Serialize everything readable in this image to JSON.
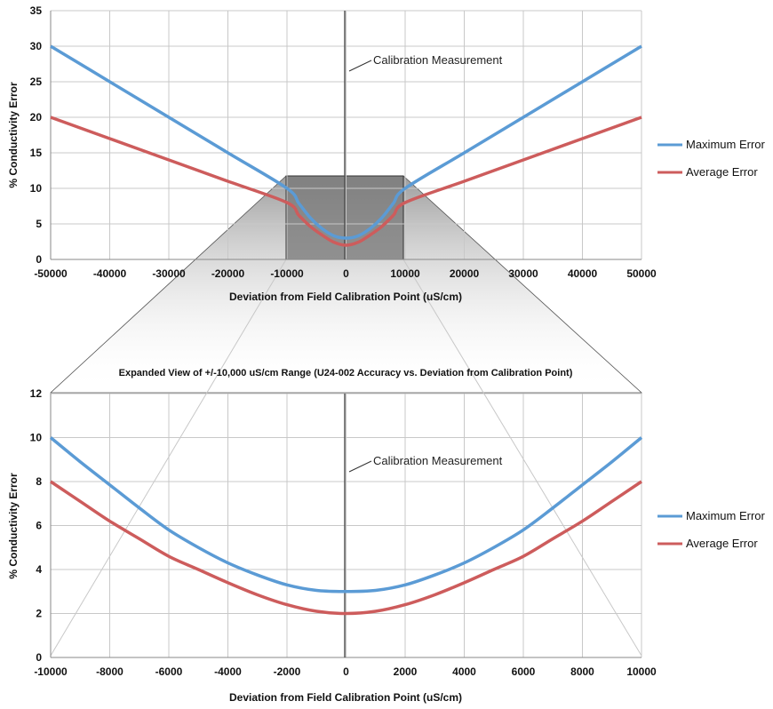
{
  "colors": {
    "max_error": "#5b9bd5",
    "avg_error": "#cd5c5c",
    "grid": "#c8c8c8",
    "zoom_fill": "#7f7f7f"
  },
  "chart_data": [
    {
      "type": "line",
      "title": "",
      "xlabel": "Deviation from Field Calibration Point (uS/cm)",
      "ylabel": "% Conductivity Error",
      "xlim": [
        -50000,
        50000
      ],
      "ylim": [
        0,
        35
      ],
      "xticks": [
        -50000,
        -40000,
        -30000,
        -20000,
        -10000,
        0,
        10000,
        20000,
        30000,
        40000,
        50000
      ],
      "yticks": [
        0,
        5,
        10,
        15,
        20,
        25,
        30,
        35
      ],
      "grid": true,
      "legend": "right",
      "annotation": "Calibration Measurement",
      "series": [
        {
          "name": "Maximum Error",
          "color": "#5b9bd5",
          "x": [
            -50000,
            -40000,
            -30000,
            -20000,
            -10000,
            -8000,
            -6000,
            -4000,
            -2000,
            0,
            2000,
            4000,
            6000,
            8000,
            10000,
            20000,
            30000,
            40000,
            50000
          ],
          "y": [
            30,
            25,
            20,
            15,
            10,
            7.9,
            5.8,
            4.3,
            3.3,
            3,
            3.3,
            4.3,
            5.8,
            7.9,
            10,
            15,
            20,
            25,
            30
          ]
        },
        {
          "name": "Average Error",
          "color": "#cd5c5c",
          "x": [
            -50000,
            -40000,
            -30000,
            -20000,
            -10000,
            -8000,
            -6000,
            -4000,
            -2000,
            0,
            2000,
            4000,
            6000,
            8000,
            10000,
            20000,
            30000,
            40000,
            50000
          ],
          "y": [
            20,
            17,
            14,
            11,
            8,
            6.2,
            4.6,
            3.4,
            2.4,
            2,
            2.4,
            3.4,
            4.6,
            6.2,
            8,
            11,
            14,
            17,
            20
          ]
        }
      ]
    },
    {
      "type": "line",
      "title": "Expanded View of +/-10,000 uS/cm Range (U24-002 Accuracy vs. Deviation from Calibration Point)",
      "xlabel": "Deviation from Field Calibration Point (uS/cm)",
      "ylabel": "% Conductivity Error",
      "xlim": [
        -10000,
        10000
      ],
      "ylim": [
        0,
        12
      ],
      "xticks": [
        -10000,
        -8000,
        -6000,
        -4000,
        -2000,
        0,
        2000,
        4000,
        6000,
        8000,
        10000
      ],
      "yticks": [
        0,
        2,
        4,
        6,
        8,
        10,
        12
      ],
      "grid": true,
      "legend": "right",
      "annotation": "Calibration Measurement",
      "series": [
        {
          "name": "Maximum Error",
          "color": "#5b9bd5",
          "x": [
            -10000,
            -9000,
            -8000,
            -7000,
            -6000,
            -5000,
            -4000,
            -3000,
            -2000,
            -1000,
            0,
            1000,
            2000,
            3000,
            4000,
            5000,
            6000,
            7000,
            8000,
            9000,
            10000
          ],
          "y": [
            10,
            8.9,
            7.85,
            6.8,
            5.8,
            5.0,
            4.3,
            3.75,
            3.3,
            3.05,
            3,
            3.05,
            3.3,
            3.75,
            4.3,
            5.0,
            5.8,
            6.8,
            7.85,
            8.9,
            10
          ]
        },
        {
          "name": "Average Error",
          "color": "#cd5c5c",
          "x": [
            -10000,
            -9000,
            -8000,
            -7000,
            -6000,
            -5000,
            -4000,
            -3000,
            -2000,
            -1000,
            0,
            1000,
            2000,
            3000,
            4000,
            5000,
            6000,
            7000,
            8000,
            9000,
            10000
          ],
          "y": [
            8,
            7.1,
            6.2,
            5.4,
            4.6,
            4.0,
            3.4,
            2.85,
            2.4,
            2.1,
            2,
            2.1,
            2.4,
            2.85,
            3.4,
            4.0,
            4.6,
            5.4,
            6.2,
            7.1,
            8
          ]
        }
      ]
    }
  ]
}
